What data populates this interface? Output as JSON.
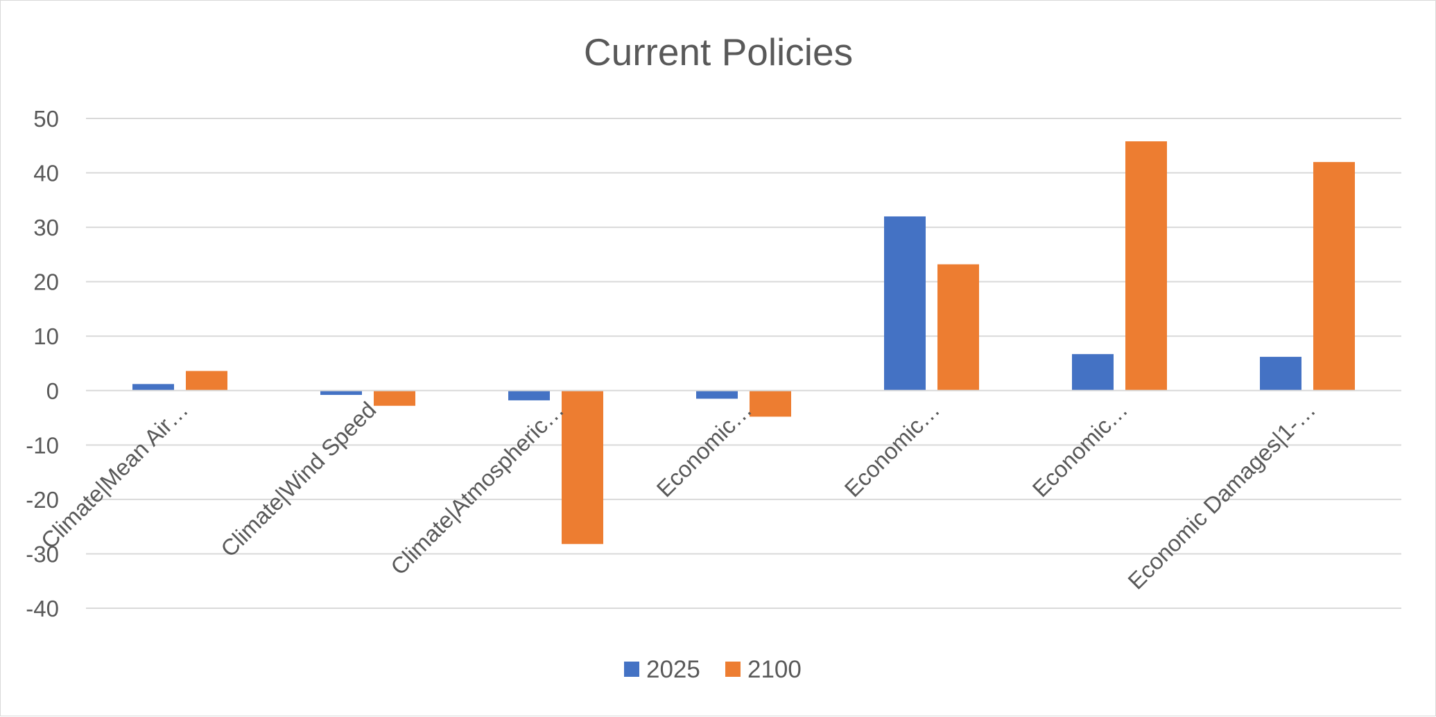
{
  "chart_data": {
    "type": "bar",
    "title": "Current Policies",
    "categories": [
      "Climate|Mean Air…",
      "Climate|Wind Speed",
      "Climate|Atmospheric…",
      "Economic…",
      "Economic…",
      "Economic…",
      "Economic Damages|1-…"
    ],
    "series": [
      {
        "name": "2025",
        "color": "#4472c4",
        "values": [
          1.2,
          -0.8,
          -1.8,
          -1.5,
          32,
          6.7,
          6.2
        ]
      },
      {
        "name": "2100",
        "color": "#ed7d31",
        "values": [
          3.6,
          -2.8,
          -28.2,
          -4.8,
          23.2,
          45.8,
          42
        ]
      }
    ],
    "yticks": [
      50,
      40,
      30,
      20,
      10,
      0,
      -10,
      -20,
      -30,
      -40
    ],
    "ylim": [
      -40,
      50
    ],
    "xlabel": "",
    "ylabel": "",
    "grid": true,
    "legend_position": "bottom"
  }
}
